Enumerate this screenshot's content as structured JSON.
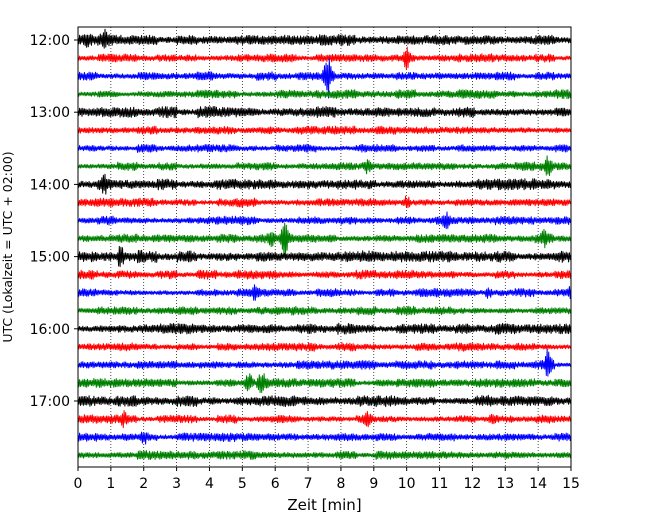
{
  "chart_data": {
    "type": "line",
    "title": "",
    "xlabel": "Zeit  [min]",
    "ylabel": "UTC (Lokalzeit = UTC + 02:00)",
    "xlim": [
      0,
      15
    ],
    "x_ticks": [
      "0",
      "1",
      "2",
      "3",
      "4",
      "5",
      "6",
      "7",
      "8",
      "9",
      "10",
      "11",
      "12",
      "13",
      "14",
      "15"
    ],
    "y_ticks": [
      "12:00",
      "13:00",
      "14:00",
      "15:00",
      "16:00",
      "17:00"
    ],
    "grid": "vertical dotted",
    "trace_start": "12:00",
    "trace_interval_min": 15,
    "trace_count": 24,
    "colors": [
      "#000000",
      "#ff0000",
      "#0000ff",
      "#008000"
    ],
    "events": [
      {
        "trace": "12:00",
        "x": 0.3,
        "amplitude": 0.25
      },
      {
        "trace": "12:00",
        "x": 0.8,
        "amplitude": 0.35
      },
      {
        "trace": "12:15",
        "x": 10.0,
        "amplitude": 0.5
      },
      {
        "trace": "12:30",
        "x": 7.6,
        "amplitude": 1.2
      },
      {
        "trace": "13:45",
        "x": 8.8,
        "amplitude": 0.3
      },
      {
        "trace": "13:45",
        "x": 14.3,
        "amplitude": 0.5
      },
      {
        "trace": "14:00",
        "x": 0.8,
        "amplitude": 0.45
      },
      {
        "trace": "14:15",
        "x": 10.0,
        "amplitude": 0.3
      },
      {
        "trace": "14:30",
        "x": 11.2,
        "amplitude": 0.3
      },
      {
        "trace": "14:45",
        "x": 5.9,
        "amplitude": 0.3
      },
      {
        "trace": "14:45",
        "x": 6.3,
        "amplitude": 1.1
      },
      {
        "trace": "14:45",
        "x": 14.2,
        "amplitude": 0.35
      },
      {
        "trace": "15:00",
        "x": 1.3,
        "amplitude": 0.55
      },
      {
        "trace": "15:00",
        "x": 1.9,
        "amplitude": 0.2
      },
      {
        "trace": "15:30",
        "x": 5.4,
        "amplitude": 0.35
      },
      {
        "trace": "15:30",
        "x": 12.5,
        "amplitude": 0.25
      },
      {
        "trace": "15:30",
        "x": 15.0,
        "amplitude": 0.3
      },
      {
        "trace": "16:30",
        "x": 14.3,
        "amplitude": 0.8
      },
      {
        "trace": "16:45",
        "x": 5.2,
        "amplitude": 0.5
      },
      {
        "trace": "16:45",
        "x": 5.6,
        "amplitude": 0.6
      },
      {
        "trace": "17:15",
        "x": 1.4,
        "amplitude": 0.3
      },
      {
        "trace": "17:15",
        "x": 8.8,
        "amplitude": 0.3
      },
      {
        "trace": "17:15",
        "x": 12.6,
        "amplitude": 0.3
      },
      {
        "trace": "17:30",
        "x": 2.0,
        "amplitude": 0.3
      }
    ]
  }
}
